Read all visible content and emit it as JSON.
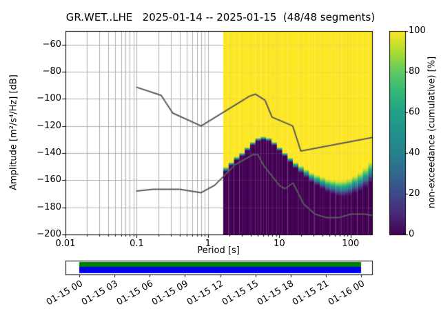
{
  "chart_data": {
    "type": "heatmap",
    "title": "GR.WET..LHE   2025-01-14 -- 2025-01-15  (48/48 segments)",
    "xlabel": "Period [s]",
    "ylabel": "Amplitude [m²/s⁴/Hz] [dB]",
    "xscale": "log",
    "xlim": [
      0.01,
      200
    ],
    "ylim": [
      -200,
      -50
    ],
    "grid": true,
    "xticks": [
      0.01,
      0.1,
      1,
      10,
      100
    ],
    "xtick_labels": [
      "0.01",
      "0.1",
      "1",
      "10",
      "100"
    ],
    "yticks": [
      -200,
      -180,
      -160,
      -140,
      -120,
      -100,
      -80,
      -60
    ],
    "ytick_labels": [
      "−200",
      "−180",
      "−160",
      "−140",
      "−120",
      "−100",
      "−80",
      "−60"
    ],
    "colorbar": {
      "label": "non-exceedance (cumulative) [%]",
      "range": [
        0,
        100
      ],
      "ticks": [
        0,
        20,
        40,
        60,
        80,
        100
      ],
      "tick_labels": [
        "0",
        "20",
        "40",
        "60",
        "80",
        "100"
      ],
      "colormap": "viridis",
      "stops": [
        "#440154",
        "#482878",
        "#3e4a89",
        "#31688e",
        "#26828e",
        "#21918c",
        "#1fa187",
        "#35b779",
        "#5ec962",
        "#addc30",
        "#fde725"
      ]
    },
    "ppsd_distribution": {
      "periods_s": [
        1.78,
        2.12,
        2.52,
        3.0,
        3.56,
        4.24,
        5.04,
        5.99,
        7.13,
        8.48,
        10.1,
        12.0,
        14.3,
        16.9,
        20.2,
        24.0,
        28.5,
        33.9,
        40.3,
        48.0,
        57.0,
        67.8,
        80.6,
        95.9,
        114,
        136,
        161,
        192
      ],
      "median_db": [
        -152,
        -148,
        -144,
        -141,
        -137,
        -133,
        -130,
        -129,
        -130,
        -133,
        -137,
        -141,
        -145,
        -149,
        -152,
        -155,
        -158,
        -160,
        -162,
        -164,
        -165,
        -166,
        -166,
        -165,
        -163,
        -161,
        -158,
        -154
      ],
      "spread_db": [
        4,
        3,
        3,
        3,
        3,
        3,
        3,
        3,
        3,
        3,
        3,
        3,
        4,
        5,
        6,
        7,
        8,
        9,
        10,
        11,
        12,
        13,
        14,
        14,
        15,
        16,
        17,
        18
      ]
    },
    "noise_models": {
      "color": "#5a5a5a",
      "high": {
        "periods_s": [
          0.1,
          0.22,
          0.32,
          0.8,
          3.8,
          4.6,
          6.3,
          7.9,
          15.4,
          20.0,
          200
        ],
        "values_db": [
          -91.5,
          -97.4,
          -110.5,
          -120.0,
          -98.1,
          -96.5,
          -101.0,
          -113.5,
          -120.0,
          -138.5,
          -128.5
        ]
      },
      "low": {
        "periods_s": [
          0.1,
          0.17,
          0.4,
          0.8,
          1.24,
          2.4,
          4.3,
          5.0,
          6.0,
          10.0,
          12.0,
          15.6,
          21.9,
          31.6,
          45.0,
          70.0,
          101.0,
          154.0,
          200.0
        ],
        "values_db": [
          -168.0,
          -166.7,
          -166.7,
          -169.2,
          -163.7,
          -148.6,
          -141.1,
          -141.1,
          -149.0,
          -163.8,
          -166.2,
          -162.1,
          -177.5,
          -185.0,
          -187.5,
          -187.5,
          -185.0,
          -185.0,
          -185.9
        ]
      }
    },
    "timeline": {
      "tick_labels": [
        "01-15 00",
        "01-15 03",
        "01-15 06",
        "01-15 09",
        "01-15 12",
        "01-15 15",
        "01-15 18",
        "01-15 21",
        "01-16 00"
      ],
      "bar_colors": {
        "top": "#008000",
        "bottom": "#0000ee",
        "background": "#ffffff"
      },
      "data_extent_frac": [
        0.045,
        0.964
      ]
    }
  }
}
